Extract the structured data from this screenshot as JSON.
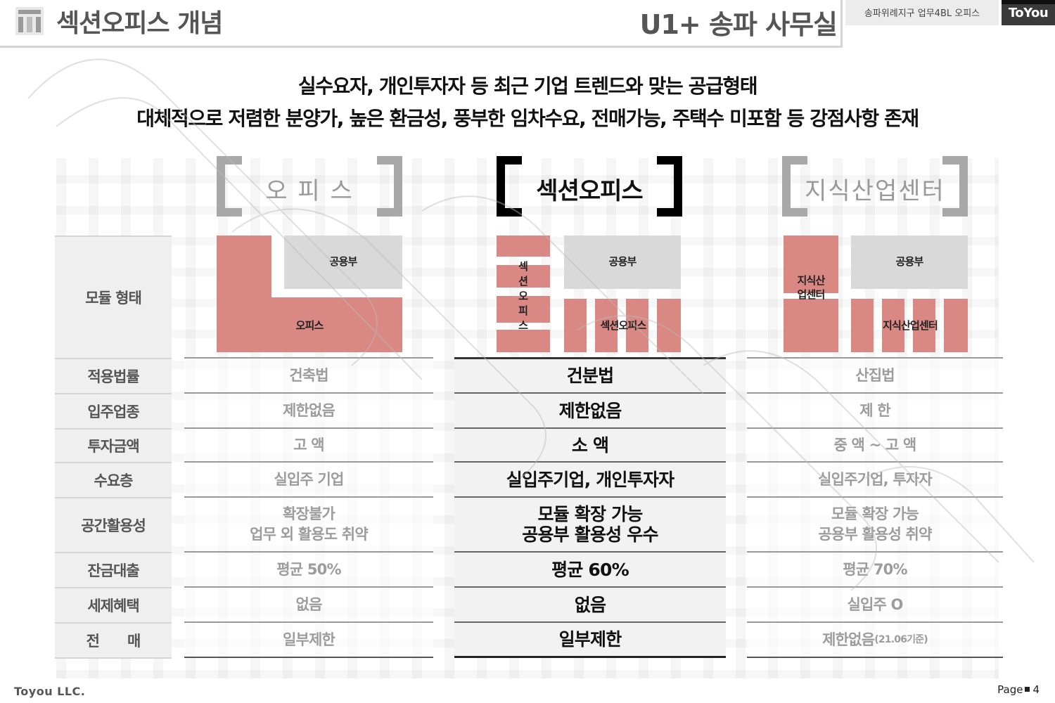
{
  "header": {
    "title": "섹션오피스 개념",
    "project": "U1+ 송파 사무실",
    "site_tag": "송파위례지구 업무4BL 오피스",
    "brand": "ToYou"
  },
  "intro": {
    "line1": "실수요자, 개인투자자 등 최근 기업 트렌드와 맞는 공급형태",
    "line2": "대체적으로 저렴한 분양가, 높은 환금성, 풍부한 임차수요, 전매가능, 주택수 미포함 등 강점사항 존재"
  },
  "columns": [
    {
      "heading": "오 피 스",
      "featured": false
    },
    {
      "heading": "섹션오피스",
      "featured": true
    },
    {
      "heading": "지식산업센터",
      "featured": false
    }
  ],
  "row_labels": [
    "모듈 형태",
    "적용법률",
    "입주업종",
    "투자금액",
    "수요층",
    "공간활용성",
    "잔금대출",
    "세제혜택",
    "전　　매"
  ],
  "diagrams": {
    "office": {
      "shared_label": "공용부",
      "main_label": "오피스"
    },
    "section": {
      "shared_label": "공용부",
      "vertical_label": "섹션오피스",
      "unit_label": "섹션오피스"
    },
    "knowledge": {
      "shared_label": "공용부",
      "side_label_1": "지식산",
      "side_label_2": "업센터",
      "unit_label": "지식산업센터"
    }
  },
  "office": {
    "law": "건축법",
    "industry": "제한없음",
    "investment": "고 액",
    "demand": "실입주 기업",
    "space_1": "확장불가",
    "space_2": "업무 외 활용도 취약",
    "loan": "평균 50%",
    "tax": "없음",
    "resale": "일부제한"
  },
  "section": {
    "law": "건분법",
    "industry": "제한없음",
    "investment": "소 액",
    "demand": "실입주기업, 개인투자자",
    "space_1": "모듈 확장 가능",
    "space_2": "공용부 활용성 우수",
    "loan": "평균 60%",
    "tax": "없음",
    "resale": "일부제한"
  },
  "knowledge": {
    "law": "산집법",
    "industry": "제 한",
    "investment": "중 액 ~ 고 액",
    "demand": "실입주기업, 투자자",
    "space_1": "모듈 확장 가능",
    "space_2": "공용부 활용성 취약",
    "loan": "평균 70%",
    "tax": "실입주 O",
    "resale": "제한없음",
    "resale_note": "(21.06기준)"
  },
  "footer": {
    "company": "Toyou LLC.",
    "page_label": "Page",
    "page_number": "4"
  },
  "colors": {
    "module_red": "#d98883",
    "shared_gray": "#d9d9d9",
    "label_bg": "#efefef",
    "brand_dark": "#3a3a3a"
  }
}
